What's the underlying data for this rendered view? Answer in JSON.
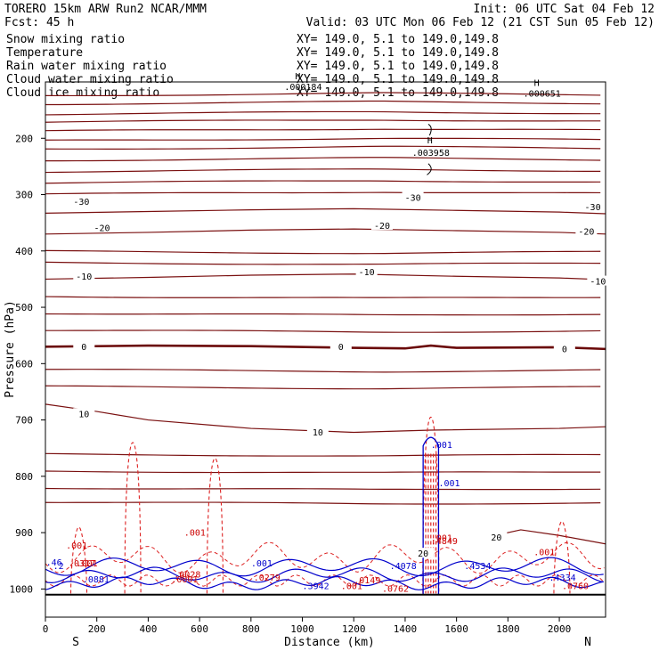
{
  "header": {
    "model": "TORERO   15km ARW   Run2    NCAR/MMM",
    "init": "Init: 06 UTC Sat 04 Feb 12",
    "fcst": "Fcst:    45 h",
    "valid": "Valid: 03 UTC Mon 06 Feb 12 (21 CST Sun 05 Feb 12)"
  },
  "fields": [
    {
      "name": "Snow mixing ratio",
      "xy": "XY= 149.0,  5.1 to 149.0,149.8",
      "color": "#000000"
    },
    {
      "name": "Temperature",
      "xy": "XY= 149.0,  5.1 to 149.0,149.8",
      "color": "#cc0000"
    },
    {
      "name": "Rain water mixing ratio",
      "xy": "XY= 149.0,  5.1 to 149.0,149.8",
      "color": "#cc0000"
    },
    {
      "name": "Cloud water mixing ratio",
      "xy": "XY= 149.0,  5.1 to 149.0,149.8",
      "color": "#0000cc"
    },
    {
      "name": "Cloud ice mixing ratio",
      "xy": "XY= 149.0,  5.1 to 149.0,149.8",
      "color": "#000000"
    }
  ],
  "colors": {
    "temperature": "#7a1010",
    "temperature_zero": "#6a0808",
    "rain": "#dd2222",
    "cloud_water": "#0000cc",
    "snow": "#000000",
    "labels_rain": "#cc0000",
    "labels_cloud": "#0000cc"
  },
  "chart_data": {
    "type": "line",
    "xlabel": "Distance (km)",
    "ylabel": "Pressure (hPa)",
    "xlim": [
      0,
      2180
    ],
    "ylim": [
      1050,
      100
    ],
    "x_ticks": [
      0,
      200,
      400,
      600,
      800,
      1000,
      1200,
      1400,
      1600,
      1800,
      2000
    ],
    "y_ticks": [
      200,
      300,
      400,
      500,
      600,
      700,
      800,
      900,
      1000
    ],
    "x_end_labels": {
      "left": "S",
      "right": "N"
    },
    "temperature_contours": [
      {
        "value": -30,
        "label": "-30",
        "x": [
          0,
          400,
          800,
          1200,
          1600,
          2000,
          2180
        ],
        "p": [
          333,
          330,
          327,
          325,
          328,
          331,
          334
        ],
        "label_positions": [
          {
            "x": 140,
            "p": 313
          },
          {
            "x": 1430,
            "p": 306
          },
          {
            "x": 2130,
            "p": 323
          }
        ]
      },
      {
        "value": -20,
        "label": "-20",
        "x": [
          0,
          400,
          800,
          1200,
          1600,
          2000,
          2180
        ],
        "p": [
          370,
          367,
          363,
          361,
          364,
          367,
          370
        ],
        "label_positions": [
          {
            "x": 220,
            "p": 360
          },
          {
            "x": 1310,
            "p": 356
          },
          {
            "x": 2105,
            "p": 366
          }
        ]
      },
      {
        "value": -10,
        "label": "-10",
        "x": [
          0,
          400,
          800,
          1200,
          1600,
          2000,
          2180
        ],
        "p": [
          450,
          447,
          443,
          441,
          445,
          448,
          451
        ],
        "label_positions": [
          {
            "x": 150,
            "p": 446
          },
          {
            "x": 1250,
            "p": 438
          },
          {
            "x": 2150,
            "p": 455
          }
        ]
      },
      {
        "value": 0,
        "label": "0",
        "x": [
          0,
          400,
          800,
          1200,
          1400,
          1500,
          1600,
          2000,
          2180
        ],
        "p": [
          570,
          568,
          569,
          572,
          573,
          568,
          572,
          571,
          574
        ],
        "label_positions": [
          {
            "x": 150,
            "p": 571
          },
          {
            "x": 1150,
            "p": 571
          },
          {
            "x": 2020,
            "p": 575
          }
        ]
      },
      {
        "value": 10,
        "label": "10",
        "x": [
          0,
          200,
          400,
          800,
          1200,
          1500,
          2000,
          2180
        ],
        "p": [
          672,
          685,
          700,
          715,
          722,
          718,
          715,
          712
        ],
        "label_positions": [
          {
            "x": 150,
            "p": 690
          },
          {
            "x": 1060,
            "p": 723
          }
        ]
      },
      {
        "value": 20,
        "label": "20",
        "x": [
          1750,
          1850,
          2000,
          2180
        ],
        "p": [
          905,
          895,
          905,
          920
        ],
        "label_positions": [
          {
            "x": 1470,
            "p": 938
          },
          {
            "x": 1755,
            "p": 909
          }
        ]
      }
    ],
    "temperature_pressure_levels": [
      125,
      140,
      158,
      172,
      188,
      205,
      220,
      240,
      260,
      280,
      300,
      400,
      420,
      480,
      510,
      540,
      610,
      640,
      760,
      790,
      820,
      845
    ],
    "cloud_ice_max": [
      {
        "label": ".000184",
        "x": 930,
        "p": 108
      },
      {
        "label": ".000651",
        "x": 1860,
        "p": 120
      }
    ],
    "snow_max": {
      "label": ".003958",
      "x": 1500,
      "p": 225
    },
    "rain_max_labels": [
      ".001",
      ".001",
      ".001",
      ".0001",
      ".001",
      ".0028",
      ".0279",
      ".001",
      ".0149",
      ".0762",
      ".4849",
      ".001",
      ".0760",
      ".0317"
    ],
    "cloud_water_max_labels": [
      ".46",
      ".0881",
      ".2",
      ".001",
      ".3942",
      ".001",
      ".001",
      ".4078",
      ".4534",
      ".4334"
    ],
    "rain_peaks": [
      {
        "x": 130,
        "p": 890
      },
      {
        "x": 340,
        "p": 740
      },
      {
        "x": 660,
        "p": 768
      },
      {
        "x": 1500,
        "p": 695
      },
      {
        "x": 2010,
        "p": 880
      }
    ],
    "cloud_water_core": {
      "x": [
        1470,
        1530
      ],
      "p_top": 726,
      "p_bottom": 1010
    }
  }
}
